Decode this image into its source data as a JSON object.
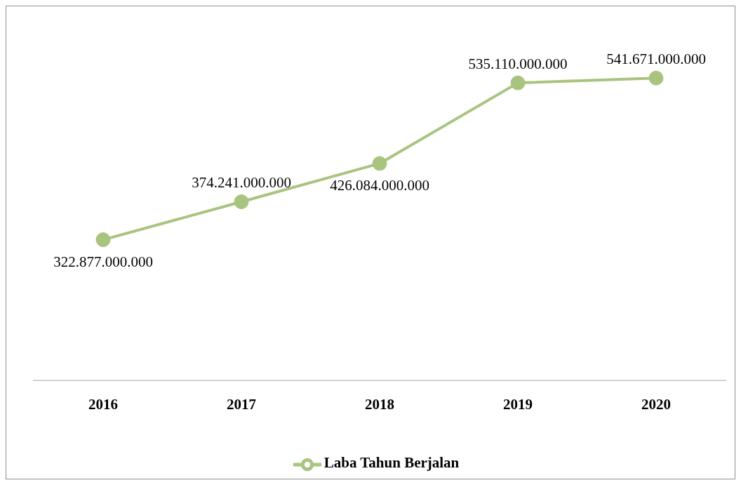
{
  "chart_data": {
    "type": "line",
    "categories": [
      "2016",
      "2017",
      "2018",
      "2019",
      "2020"
    ],
    "series": [
      {
        "name": "Laba Tahun Berjalan",
        "color": "#a9c47f",
        "values": [
          322877000000,
          374241000000,
          426084000000,
          535110000000,
          541671000000
        ],
        "value_labels": [
          "322.877.000.000",
          "374.241.000.000",
          "426.084.000.000",
          "535.110.000.000",
          "541.671.000.000"
        ]
      }
    ],
    "marker": "circle",
    "line_style": "solid",
    "legend": "bottom",
    "grid": false,
    "tick_labels": "x"
  }
}
